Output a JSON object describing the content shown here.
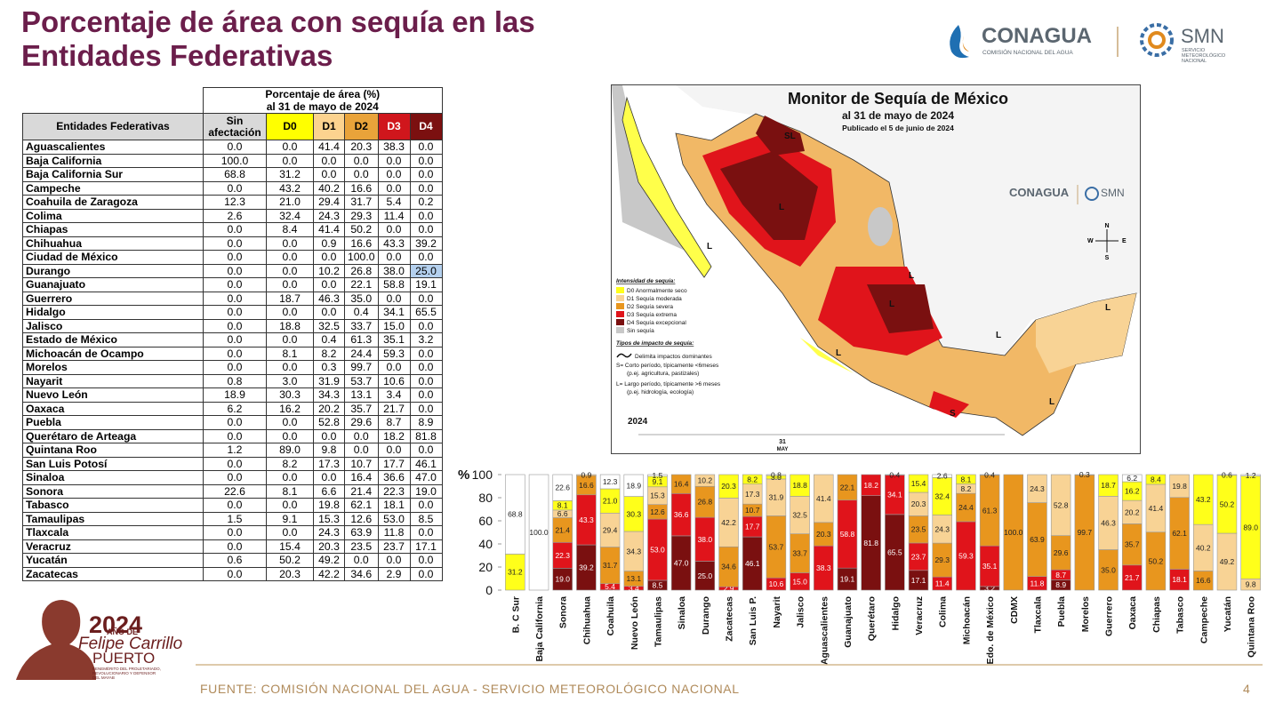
{
  "header": {
    "title": "Porcentaje de área con sequía en las Entidades Federativas",
    "logo_conagua": "CONAGUA",
    "logo_conagua_sub": "COMISIÓN NACIONAL DEL AGUA",
    "logo_smn": "SMN",
    "logo_smn_sub": [
      "SERVICIO",
      "METEOROLÓGICO",
      "NACIONAL"
    ]
  },
  "table": {
    "title": [
      "Porcentaje de área (%)",
      "al 31 de mayo de 2024"
    ],
    "row_header": "Entidades Federativas",
    "rows": [
      [
        "Aguascalientes",
        "0.0",
        "0.0",
        "41.4",
        "20.3",
        "38.3",
        "0.0"
      ],
      [
        "Baja California",
        "100.0",
        "0.0",
        "0.0",
        "0.0",
        "0.0",
        "0.0"
      ],
      [
        "Baja California Sur",
        "68.8",
        "31.2",
        "0.0",
        "0.0",
        "0.0",
        "0.0"
      ],
      [
        "Campeche",
        "0.0",
        "43.2",
        "40.2",
        "16.6",
        "0.0",
        "0.0"
      ],
      [
        "Coahuila de Zaragoza",
        "12.3",
        "21.0",
        "29.4",
        "31.7",
        "5.4",
        "0.2"
      ],
      [
        "Colima",
        "2.6",
        "32.4",
        "24.3",
        "29.3",
        "11.4",
        "0.0"
      ],
      [
        "Chiapas",
        "0.0",
        "8.4",
        "41.4",
        "50.2",
        "0.0",
        "0.0"
      ],
      [
        "Chihuahua",
        "0.0",
        "0.0",
        "0.9",
        "16.6",
        "43.3",
        "39.2"
      ],
      [
        "Ciudad de México",
        "0.0",
        "0.0",
        "0.0",
        "100.0",
        "0.0",
        "0.0"
      ],
      [
        "Durango",
        "0.0",
        "0.0",
        "10.2",
        "26.8",
        "38.0",
        "25.0"
      ],
      [
        "Guanajuato",
        "0.0",
        "0.0",
        "0.0",
        "22.1",
        "58.8",
        "19.1"
      ],
      [
        "Guerrero",
        "0.0",
        "18.7",
        "46.3",
        "35.0",
        "0.0",
        "0.0"
      ],
      [
        "Hidalgo",
        "0.0",
        "0.0",
        "0.0",
        "0.4",
        "34.1",
        "65.5"
      ],
      [
        "Jalisco",
        "0.0",
        "18.8",
        "32.5",
        "33.7",
        "15.0",
        "0.0"
      ],
      [
        "Estado de México",
        "0.0",
        "0.0",
        "0.4",
        "61.3",
        "35.1",
        "3.2"
      ],
      [
        "Michoacán de Ocampo",
        "0.0",
        "8.1",
        "8.2",
        "24.4",
        "59.3",
        "0.0"
      ],
      [
        "Morelos",
        "0.0",
        "0.0",
        "0.3",
        "99.7",
        "0.0",
        "0.0"
      ],
      [
        "Nayarit",
        "0.8",
        "3.0",
        "31.9",
        "53.7",
        "10.6",
        "0.0"
      ],
      [
        "Nuevo León",
        "18.9",
        "30.3",
        "34.3",
        "13.1",
        "3.4",
        "0.0"
      ],
      [
        "Oaxaca",
        "6.2",
        "16.2",
        "20.2",
        "35.7",
        "21.7",
        "0.0"
      ],
      [
        "Puebla",
        "0.0",
        "0.0",
        "52.8",
        "29.6",
        "8.7",
        "8.9"
      ],
      [
        "Querétaro de Arteaga",
        "0.0",
        "0.0",
        "0.0",
        "0.0",
        "18.2",
        "81.8"
      ],
      [
        "Quintana Roo",
        "1.2",
        "89.0",
        "9.8",
        "0.0",
        "0.0",
        "0.0"
      ],
      [
        "San Luis Potosí",
        "0.0",
        "8.2",
        "17.3",
        "10.7",
        "17.7",
        "46.1"
      ],
      [
        "Sinaloa",
        "0.0",
        "0.0",
        "0.0",
        "16.4",
        "36.6",
        "47.0"
      ],
      [
        "Sonora",
        "22.6",
        "8.1",
        "6.6",
        "21.4",
        "22.3",
        "19.0"
      ],
      [
        "Tabasco",
        "0.0",
        "0.0",
        "19.8",
        "62.1",
        "18.1",
        "0.0"
      ],
      [
        "Tamaulipas",
        "1.5",
        "9.1",
        "15.3",
        "12.6",
        "53.0",
        "8.5"
      ],
      [
        "Tlaxcala",
        "0.0",
        "0.0",
        "24.3",
        "63.9",
        "11.8",
        "0.0"
      ],
      [
        "Veracruz",
        "0.0",
        "15.4",
        "20.3",
        "23.5",
        "23.7",
        "17.1"
      ],
      [
        "Yucatán",
        "0.6",
        "50.2",
        "49.2",
        "0.0",
        "0.0",
        "0.0"
      ],
      [
        "Zacatecas",
        "0.0",
        "20.3",
        "42.2",
        "34.6",
        "2.9",
        "0.0"
      ]
    ]
  },
  "map": {
    "title": "Monitor de Sequía de México",
    "date": "al 31 de mayo de 2024",
    "published": "Publicado el 5 de junio de 2024",
    "legend_title": "Intensidad de sequía:",
    "legend": [
      "D0 Anormalmente seco",
      "D1 Sequía moderada",
      "D2 Sequía severa",
      "D3 Sequía extrema",
      "D4 Sequía excepcional",
      "Sin sequía"
    ],
    "impact_title": "Tipos de impacto de sequía:",
    "impact_line": "Delimita impactos dominantes",
    "impact_s": [
      "S= Corto período, típicamente <6meses",
      "(p.ej. agricultura, pastizales)"
    ],
    "impact_l": [
      "L= Largo período, típicamente >6 meses",
      "(p.ej. hidrología, ecología)"
    ],
    "year": "2024",
    "day": "31",
    "month": "MAY",
    "compass": [
      "N",
      "S",
      "E",
      "W"
    ],
    "impact_labels": [
      "SL",
      "L",
      "L",
      "L",
      "L",
      "L",
      "L",
      "S",
      "L",
      "L"
    ],
    "logo_conagua": "CONAGUA",
    "logo_smn": "SMN"
  },
  "chart_data": {
    "type": "stacked_bar",
    "y_label": "%",
    "ylim": [
      0,
      100
    ],
    "yticks": [
      0,
      20,
      40,
      60,
      80,
      100
    ],
    "categories": [
      "B. C Sur",
      "Baja California",
      "Sonora",
      "Chihuahua",
      "Coahuila",
      "Nuevo León",
      "Tamaulipas",
      "Sinaloa",
      "Durango",
      "Zacatecas",
      "San Luis P.",
      "Nayarit",
      "Jalisco",
      "Aguascalientes",
      "Guanajuato",
      "Querétaro",
      "Hidalgo",
      "Veracruz",
      "Colima",
      "Michoacán",
      "Edo. de México",
      "CDMX",
      "Tlaxcala",
      "Puebla",
      "Morelos",
      "Guerrero",
      "Oaxaca",
      "Chiapas",
      "Tabasco",
      "Campeche",
      "Yucatán",
      "Quintana Roo"
    ],
    "series": [
      {
        "name": "D4",
        "color": "#7a1010",
        "values": [
          0,
          0,
          19.0,
          39.2,
          0.2,
          0,
          8.5,
          47.0,
          25.0,
          0,
          46.1,
          0,
          0,
          0,
          19.1,
          81.8,
          65.5,
          17.1,
          0,
          0,
          3.2,
          0,
          0,
          8.9,
          0,
          0,
          0,
          0,
          0,
          0,
          0,
          0
        ],
        "value_labels": [
          null,
          null,
          "19.0",
          "39.2",
          "0.2",
          null,
          "8.5",
          "47.0",
          "25.0",
          null,
          "46.1",
          null,
          null,
          null,
          "19.1",
          "81.8",
          "65.5",
          "17.1",
          null,
          null,
          "3.2",
          null,
          null,
          "8.9",
          null,
          null,
          null,
          null,
          null,
          null,
          null,
          null
        ]
      },
      {
        "name": "D3",
        "color": "#e0141b",
        "values": [
          0,
          0,
          22.3,
          43.3,
          5.4,
          3.4,
          53.0,
          36.6,
          38.0,
          2.9,
          17.7,
          10.6,
          15.0,
          38.3,
          58.8,
          18.2,
          34.1,
          23.7,
          11.4,
          59.3,
          35.1,
          0,
          11.8,
          8.7,
          0,
          0,
          21.7,
          0,
          18.1,
          0,
          0,
          0
        ],
        "value_labels": [
          null,
          null,
          "22.3",
          "43.3",
          "5.4",
          "3.4",
          "53.0",
          "36.6",
          "38.0",
          "2.9",
          "17.7",
          "10.6",
          "15.0",
          "38.3",
          "58.8",
          "18.2",
          "34.1",
          "23.7",
          "11.4",
          "59.3",
          "35.1",
          null,
          "11.8",
          "8.7",
          null,
          null,
          "21.7",
          null,
          "18.1",
          null,
          null,
          null
        ]
      },
      {
        "name": "D2",
        "color": "#e8961e",
        "values": [
          0,
          0,
          21.4,
          16.6,
          31.7,
          13.1,
          12.6,
          16.4,
          26.8,
          34.6,
          10.7,
          53.7,
          33.7,
          20.3,
          22.1,
          0,
          0.4,
          23.5,
          29.3,
          24.4,
          61.3,
          100.0,
          63.9,
          29.6,
          99.7,
          35.0,
          35.7,
          50.2,
          62.1,
          16.6,
          0,
          0
        ],
        "value_labels": [
          null,
          null,
          "21.4",
          "16.6",
          "31.7",
          "13.1",
          "12.6",
          "16.4",
          "26.8",
          "34.6",
          "10.7",
          "53.7",
          "33.7",
          "20.3",
          "22.1",
          null,
          "0.4",
          "23.5",
          "29.3",
          "24.4",
          "61.3",
          "100.0",
          "63.9",
          "29.6",
          "99.7",
          "35.0",
          "35.7",
          "50.2",
          "62.1",
          "16.6",
          null,
          null
        ]
      },
      {
        "name": "D1",
        "color": "#f8d395",
        "values": [
          0,
          0,
          6.6,
          0.9,
          29.4,
          34.3,
          15.3,
          0,
          10.2,
          42.2,
          17.3,
          31.9,
          32.5,
          41.4,
          0,
          0,
          0,
          20.3,
          24.3,
          8.2,
          0.4,
          0,
          24.3,
          52.8,
          0.3,
          46.3,
          20.2,
          41.4,
          19.8,
          40.2,
          49.2,
          9.8
        ],
        "value_labels": [
          null,
          null,
          "6.6",
          "0.9",
          "29.4",
          "34.3",
          "15.3",
          null,
          "10.2",
          "42.2",
          "17.3",
          "31.9",
          "32.5",
          "41.4",
          null,
          null,
          null,
          "20.3",
          "24.3",
          "8.2",
          "0.4",
          null,
          "24.3",
          "52.8",
          "0.3",
          "46.3",
          "20.2",
          "41.4",
          "19.8",
          "40.2",
          "49.2",
          "9.8"
        ]
      },
      {
        "name": "D0",
        "color": "#ffff1a",
        "values": [
          31.2,
          0,
          8.1,
          0,
          21.0,
          30.3,
          9.1,
          0,
          0,
          20.3,
          8.2,
          3.0,
          18.8,
          0,
          0,
          0,
          0,
          15.4,
          32.4,
          8.1,
          0,
          0,
          0,
          0,
          0,
          18.7,
          16.2,
          8.4,
          0,
          43.2,
          50.2,
          89.0
        ],
        "value_labels": [
          "31.2",
          null,
          "8.1",
          null,
          "21.0",
          "30.3",
          "9.1",
          null,
          null,
          "20.3",
          "8.2",
          "3.0",
          "18.8",
          null,
          null,
          null,
          null,
          "15.4",
          "32.4",
          "8.1",
          null,
          null,
          null,
          null,
          null,
          "18.7",
          "16.2",
          "8.4",
          null,
          "43.2",
          "50.2",
          "89.0"
        ]
      },
      {
        "name": "Sin afectación",
        "color": "#ffffff",
        "values": [
          68.8,
          100.0,
          22.6,
          0,
          12.3,
          18.9,
          1.5,
          0,
          0,
          0,
          0,
          0.8,
          0,
          0,
          0,
          0,
          0,
          0,
          2.6,
          0,
          0,
          0,
          0,
          0,
          0,
          0,
          6.2,
          0,
          0,
          0,
          0.6,
          1.2
        ],
        "value_labels": [
          "68.8",
          "100.0",
          "22.6",
          null,
          "12.3",
          "18.9",
          "1.5",
          null,
          null,
          null,
          null,
          "0.8",
          null,
          null,
          null,
          null,
          null,
          null,
          "2.6",
          null,
          null,
          null,
          null,
          null,
          null,
          null,
          "6.2",
          null,
          null,
          null,
          "0.6",
          "1.2"
        ]
      }
    ]
  },
  "footer": {
    "source": "FUENTE: COMISIÓN NACIONAL DEL AGUA - SERVICIO METEOROLÓGICO NACIONAL",
    "page": "4",
    "logo_year": "2024",
    "logo_ano": "AÑO DE",
    "logo_name": "Felipe Carrillo",
    "logo_surname": "PUERTO",
    "logo_motto": [
      "BENEMÉRITO DEL PROLETARIADO,",
      "REVOLUCIONARIO Y DEFENSOR",
      "DEL MAYAB"
    ]
  }
}
